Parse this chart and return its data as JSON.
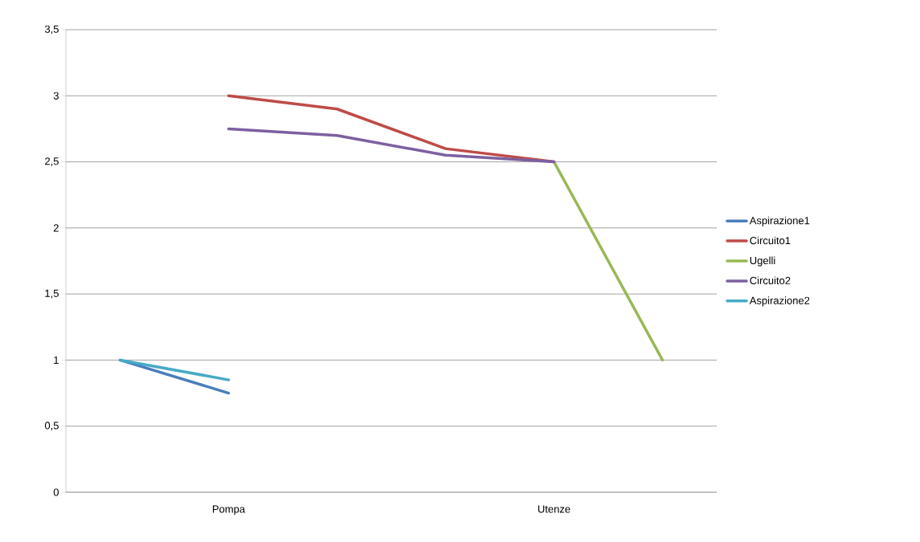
{
  "chart_data": {
    "type": "line",
    "categories": [
      null,
      "Pompa",
      null,
      null,
      "Utenze",
      null
    ],
    "series": [
      {
        "name": "Aspirazione1",
        "color": "#4a7ebb",
        "values": [
          1,
          0.75,
          null,
          null,
          null,
          null
        ]
      },
      {
        "name": "Circuito1",
        "color": "#be4b48",
        "values": [
          null,
          3,
          2.9,
          2.6,
          2.5,
          null
        ]
      },
      {
        "name": "Ugelli",
        "color": "#98b954",
        "values": [
          null,
          null,
          null,
          null,
          2.5,
          1
        ]
      },
      {
        "name": "Circuito2",
        "color": "#7d60a0",
        "values": [
          null,
          2.75,
          2.7,
          2.55,
          2.5,
          null
        ]
      },
      {
        "name": "Aspirazione2",
        "color": "#46aac5",
        "values": [
          1,
          0.85,
          null,
          null,
          null,
          null
        ]
      }
    ],
    "ylim": [
      0,
      3.5
    ],
    "yticks": [
      0,
      {
        "value": 0.5,
        "label": "0,5"
      },
      1,
      {
        "value": 1.5,
        "label": "1,5"
      },
      2,
      {
        "value": 2.5,
        "label": "2,5"
      },
      3,
      {
        "value": 3.5,
        "label": "3,5"
      }
    ],
    "grid": "y",
    "legend": "right",
    "marker": "none",
    "line_style": "solid"
  }
}
